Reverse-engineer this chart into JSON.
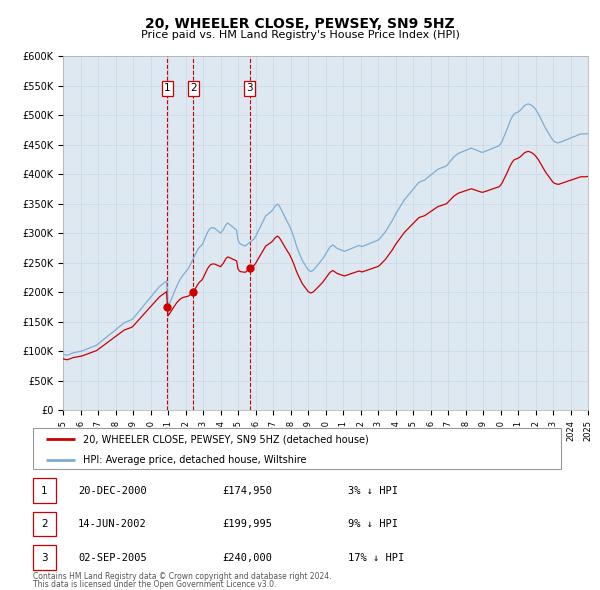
{
  "title": "20, WHEELER CLOSE, PEWSEY, SN9 5HZ",
  "subtitle": "Price paid vs. HM Land Registry's House Price Index (HPI)",
  "legend_line1": "20, WHEELER CLOSE, PEWSEY, SN9 5HZ (detached house)",
  "legend_line2": "HPI: Average price, detached house, Wiltshire",
  "footer1": "Contains HM Land Registry data © Crown copyright and database right 2024.",
  "footer2": "This data is licensed under the Open Government Licence v3.0.",
  "red_line_color": "#cc0000",
  "blue_line_color": "#7dadd4",
  "xmin": 1995,
  "xmax": 2025,
  "ymin": 0,
  "ymax": 600000,
  "yticks": [
    0,
    50000,
    100000,
    150000,
    200000,
    250000,
    300000,
    350000,
    400000,
    450000,
    500000,
    550000,
    600000
  ],
  "ytick_labels": [
    "£0",
    "£50K",
    "£100K",
    "£150K",
    "£200K",
    "£250K",
    "£300K",
    "£350K",
    "£400K",
    "£450K",
    "£500K",
    "£550K",
    "£600K"
  ],
  "sales": [
    {
      "date_num": 2000.97,
      "price": 174950,
      "label": "1"
    },
    {
      "date_num": 2002.45,
      "price": 199995,
      "label": "2"
    },
    {
      "date_num": 2005.67,
      "price": 240000,
      "label": "3"
    }
  ],
  "vlines": [
    2000.97,
    2002.45,
    2005.67
  ],
  "table_rows": [
    {
      "num": "1",
      "date": "20-DEC-2000",
      "price": "£174,950",
      "hpi": "3% ↓ HPI"
    },
    {
      "num": "2",
      "date": "14-JUN-2002",
      "price": "£199,995",
      "hpi": "9% ↓ HPI"
    },
    {
      "num": "3",
      "date": "02-SEP-2005",
      "price": "£240,000",
      "hpi": "17% ↓ HPI"
    }
  ],
  "hpi_years": [
    1995.0,
    1995.083,
    1995.167,
    1995.25,
    1995.333,
    1995.417,
    1995.5,
    1995.583,
    1995.667,
    1995.75,
    1995.833,
    1995.917,
    1996.0,
    1996.083,
    1996.167,
    1996.25,
    1996.333,
    1996.417,
    1996.5,
    1996.583,
    1996.667,
    1996.75,
    1996.833,
    1996.917,
    1997.0,
    1997.083,
    1997.167,
    1997.25,
    1997.333,
    1997.417,
    1997.5,
    1997.583,
    1997.667,
    1997.75,
    1997.833,
    1997.917,
    1998.0,
    1998.083,
    1998.167,
    1998.25,
    1998.333,
    1998.417,
    1998.5,
    1998.583,
    1998.667,
    1998.75,
    1998.833,
    1998.917,
    1999.0,
    1999.083,
    1999.167,
    1999.25,
    1999.333,
    1999.417,
    1999.5,
    1999.583,
    1999.667,
    1999.75,
    1999.833,
    1999.917,
    2000.0,
    2000.083,
    2000.167,
    2000.25,
    2000.333,
    2000.417,
    2000.5,
    2000.583,
    2000.667,
    2000.75,
    2000.833,
    2000.917,
    2001.0,
    2001.083,
    2001.167,
    2001.25,
    2001.333,
    2001.417,
    2001.5,
    2001.583,
    2001.667,
    2001.75,
    2001.833,
    2001.917,
    2002.0,
    2002.083,
    2002.167,
    2002.25,
    2002.333,
    2002.417,
    2002.5,
    2002.583,
    2002.667,
    2002.75,
    2002.833,
    2002.917,
    2003.0,
    2003.083,
    2003.167,
    2003.25,
    2003.333,
    2003.417,
    2003.5,
    2003.583,
    2003.667,
    2003.75,
    2003.833,
    2003.917,
    2004.0,
    2004.083,
    2004.167,
    2004.25,
    2004.333,
    2004.417,
    2004.5,
    2004.583,
    2004.667,
    2004.75,
    2004.833,
    2004.917,
    2005.0,
    2005.083,
    2005.167,
    2005.25,
    2005.333,
    2005.417,
    2005.5,
    2005.583,
    2005.667,
    2005.75,
    2005.833,
    2005.917,
    2006.0,
    2006.083,
    2006.167,
    2006.25,
    2006.333,
    2006.417,
    2006.5,
    2006.583,
    2006.667,
    2006.75,
    2006.833,
    2006.917,
    2007.0,
    2007.083,
    2007.167,
    2007.25,
    2007.333,
    2007.417,
    2007.5,
    2007.583,
    2007.667,
    2007.75,
    2007.833,
    2007.917,
    2008.0,
    2008.083,
    2008.167,
    2008.25,
    2008.333,
    2008.417,
    2008.5,
    2008.583,
    2008.667,
    2008.75,
    2008.833,
    2008.917,
    2009.0,
    2009.083,
    2009.167,
    2009.25,
    2009.333,
    2009.417,
    2009.5,
    2009.583,
    2009.667,
    2009.75,
    2009.833,
    2009.917,
    2010.0,
    2010.083,
    2010.167,
    2010.25,
    2010.333,
    2010.417,
    2010.5,
    2010.583,
    2010.667,
    2010.75,
    2010.833,
    2010.917,
    2011.0,
    2011.083,
    2011.167,
    2011.25,
    2011.333,
    2011.417,
    2011.5,
    2011.583,
    2011.667,
    2011.75,
    2011.833,
    2011.917,
    2012.0,
    2012.083,
    2012.167,
    2012.25,
    2012.333,
    2012.417,
    2012.5,
    2012.583,
    2012.667,
    2012.75,
    2012.833,
    2012.917,
    2013.0,
    2013.083,
    2013.167,
    2013.25,
    2013.333,
    2013.417,
    2013.5,
    2013.583,
    2013.667,
    2013.75,
    2013.833,
    2013.917,
    2014.0,
    2014.083,
    2014.167,
    2014.25,
    2014.333,
    2014.417,
    2014.5,
    2014.583,
    2014.667,
    2014.75,
    2014.833,
    2014.917,
    2015.0,
    2015.083,
    2015.167,
    2015.25,
    2015.333,
    2015.417,
    2015.5,
    2015.583,
    2015.667,
    2015.75,
    2015.833,
    2015.917,
    2016.0,
    2016.083,
    2016.167,
    2016.25,
    2016.333,
    2016.417,
    2016.5,
    2016.583,
    2016.667,
    2016.75,
    2016.833,
    2016.917,
    2017.0,
    2017.083,
    2017.167,
    2017.25,
    2017.333,
    2017.417,
    2017.5,
    2017.583,
    2017.667,
    2017.75,
    2017.833,
    2017.917,
    2018.0,
    2018.083,
    2018.167,
    2018.25,
    2018.333,
    2018.417,
    2018.5,
    2018.583,
    2018.667,
    2018.75,
    2018.833,
    2018.917,
    2019.0,
    2019.083,
    2019.167,
    2019.25,
    2019.333,
    2019.417,
    2019.5,
    2019.583,
    2019.667,
    2019.75,
    2019.833,
    2019.917,
    2020.0,
    2020.083,
    2020.167,
    2020.25,
    2020.333,
    2020.417,
    2020.5,
    2020.583,
    2020.667,
    2020.75,
    2020.833,
    2020.917,
    2021.0,
    2021.083,
    2021.167,
    2021.25,
    2021.333,
    2021.417,
    2021.5,
    2021.583,
    2021.667,
    2021.75,
    2021.833,
    2021.917,
    2022.0,
    2022.083,
    2022.167,
    2022.25,
    2022.333,
    2022.417,
    2022.5,
    2022.583,
    2022.667,
    2022.75,
    2022.833,
    2022.917,
    2023.0,
    2023.083,
    2023.167,
    2023.25,
    2023.333,
    2023.417,
    2023.5,
    2023.583,
    2023.667,
    2023.75,
    2023.833,
    2023.917,
    2024.0,
    2024.083,
    2024.167,
    2024.25,
    2024.333,
    2024.417,
    2024.5,
    2024.583,
    2024.667,
    2024.75,
    2024.833,
    2024.917,
    2025.0
  ],
  "hpi_values": [
    95000,
    94000,
    93500,
    93000,
    94000,
    95000,
    96000,
    97000,
    97500,
    98000,
    98500,
    99000,
    99500,
    100000,
    101000,
    102000,
    103000,
    104000,
    105000,
    106000,
    107000,
    108000,
    109000,
    110000,
    112000,
    114000,
    116000,
    118000,
    120000,
    122000,
    124000,
    126000,
    128000,
    130000,
    132000,
    134000,
    136000,
    138000,
    140000,
    142000,
    144000,
    146000,
    148000,
    149000,
    150000,
    151000,
    152000,
    153000,
    155000,
    158000,
    161000,
    164000,
    167000,
    170000,
    173000,
    176000,
    179000,
    182000,
    185000,
    188000,
    191000,
    194000,
    197000,
    200000,
    203000,
    206000,
    209000,
    211000,
    213000,
    215000,
    217000,
    219000,
    175000,
    180000,
    186000,
    192000,
    198000,
    204000,
    210000,
    215000,
    220000,
    224000,
    228000,
    231000,
    234000,
    237000,
    240000,
    245000,
    250000,
    255000,
    260000,
    265000,
    270000,
    274000,
    277000,
    279000,
    283000,
    289000,
    295000,
    301000,
    305000,
    308000,
    309000,
    309000,
    308000,
    306000,
    304000,
    302000,
    300000,
    303000,
    306000,
    311000,
    315000,
    317000,
    315000,
    313000,
    311000,
    309000,
    307000,
    305000,
    288000,
    283000,
    281000,
    280000,
    279000,
    278000,
    280000,
    282000,
    284000,
    286000,
    288000,
    290000,
    294000,
    299000,
    304000,
    309000,
    314000,
    319000,
    324000,
    329000,
    331000,
    333000,
    335000,
    337000,
    340000,
    344000,
    347000,
    349000,
    347000,
    343000,
    338000,
    333000,
    328000,
    323000,
    318000,
    314000,
    308000,
    302000,
    295000,
    287000,
    279000,
    272000,
    266000,
    260000,
    254000,
    250000,
    246000,
    242000,
    238000,
    236000,
    235000,
    236000,
    238000,
    241000,
    244000,
    247000,
    250000,
    253000,
    256000,
    260000,
    264000,
    268000,
    272000,
    276000,
    278000,
    280000,
    278000,
    276000,
    274000,
    273000,
    272000,
    271000,
    270000,
    269000,
    270000,
    271000,
    272000,
    273000,
    274000,
    275000,
    276000,
    277000,
    278000,
    279000,
    278000,
    277000,
    278000,
    279000,
    280000,
    281000,
    282000,
    283000,
    284000,
    285000,
    286000,
    287000,
    288000,
    290000,
    293000,
    296000,
    299000,
    302000,
    306000,
    310000,
    314000,
    318000,
    322000,
    327000,
    332000,
    336000,
    340000,
    344000,
    348000,
    352000,
    356000,
    359000,
    362000,
    365000,
    368000,
    371000,
    374000,
    377000,
    380000,
    383000,
    386000,
    387000,
    388000,
    389000,
    390000,
    392000,
    394000,
    396000,
    398000,
    400000,
    402000,
    404000,
    406000,
    408000,
    409000,
    410000,
    411000,
    412000,
    413000,
    414000,
    417000,
    420000,
    423000,
    426000,
    429000,
    431000,
    433000,
    435000,
    436000,
    437000,
    438000,
    439000,
    440000,
    441000,
    442000,
    443000,
    444000,
    443000,
    442000,
    441000,
    440000,
    439000,
    438000,
    437000,
    437000,
    438000,
    439000,
    440000,
    441000,
    442000,
    443000,
    444000,
    445000,
    446000,
    447000,
    448000,
    451000,
    455000,
    461000,
    467000,
    473000,
    479000,
    486000,
    492000,
    497000,
    501000,
    503000,
    504000,
    505000,
    507000,
    509000,
    512000,
    515000,
    517000,
    518000,
    519000,
    518000,
    517000,
    515000,
    513000,
    510000,
    506000,
    502000,
    497000,
    492000,
    487000,
    482000,
    477000,
    473000,
    469000,
    465000,
    461000,
    457000,
    455000,
    454000,
    453000,
    453000,
    454000,
    455000,
    456000,
    457000,
    458000,
    459000,
    460000,
    461000,
    462000,
    463000,
    464000,
    465000,
    466000,
    467000,
    468000,
    468000,
    468000,
    468000,
    468000,
    469000
  ]
}
